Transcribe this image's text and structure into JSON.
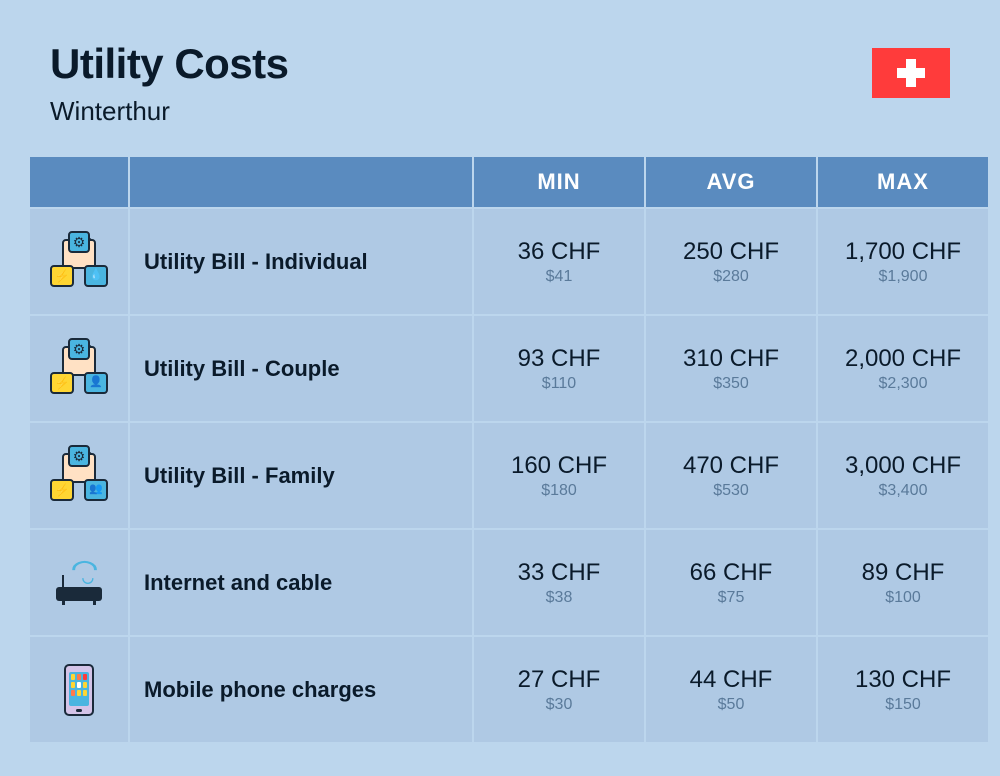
{
  "header": {
    "title": "Utility Costs",
    "subtitle": "Winterthur"
  },
  "columns": {
    "min": "MIN",
    "avg": "AVG",
    "max": "MAX"
  },
  "rows": [
    {
      "icon": "utility-individual",
      "label": "Utility Bill - Individual",
      "min_primary": "36 CHF",
      "min_secondary": "$41",
      "avg_primary": "250 CHF",
      "avg_secondary": "$280",
      "max_primary": "1,700 CHF",
      "max_secondary": "$1,900"
    },
    {
      "icon": "utility-couple",
      "label": "Utility Bill - Couple",
      "min_primary": "93 CHF",
      "min_secondary": "$110",
      "avg_primary": "310 CHF",
      "avg_secondary": "$350",
      "max_primary": "2,000 CHF",
      "max_secondary": "$2,300"
    },
    {
      "icon": "utility-family",
      "label": "Utility Bill - Family",
      "min_primary": "160 CHF",
      "min_secondary": "$180",
      "avg_primary": "470 CHF",
      "avg_secondary": "$530",
      "max_primary": "3,000 CHF",
      "max_secondary": "$3,400"
    },
    {
      "icon": "internet",
      "label": "Internet and cable",
      "min_primary": "33 CHF",
      "min_secondary": "$38",
      "avg_primary": "66 CHF",
      "avg_secondary": "$75",
      "max_primary": "89 CHF",
      "max_secondary": "$100"
    },
    {
      "icon": "mobile",
      "label": "Mobile phone charges",
      "min_primary": "27 CHF",
      "min_secondary": "$30",
      "avg_primary": "44 CHF",
      "avg_secondary": "$50",
      "max_primary": "130 CHF",
      "max_secondary": "$150"
    }
  ],
  "colors": {
    "background": "#bcd6ed",
    "header_bg": "#5a8bbf",
    "cell_bg": "#afc9e4",
    "text_primary": "#0a1a2a",
    "text_secondary": "#5a7a9a",
    "flag": "#ff3b3b"
  }
}
